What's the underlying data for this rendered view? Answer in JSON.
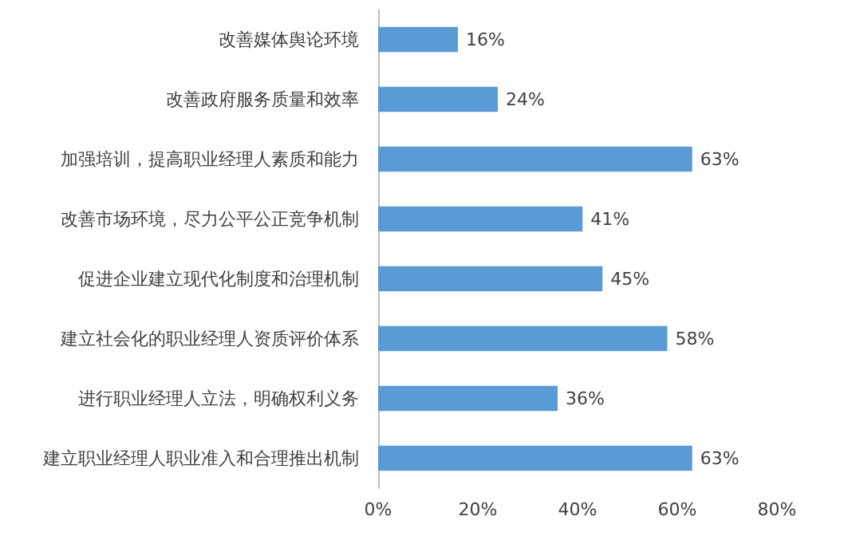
{
  "chart_data": {
    "type": "bar",
    "orientation": "horizontal",
    "categories": [
      "改善媒体舆论环境",
      "改善政府服务质量和效率",
      "加强培训，提高职业经理人素质和能力",
      "改善市场环境，尽力公平公正竞争机制",
      "促进企业建立现代化制度和治理机制",
      "建立社会化的职业经理人资质评价体系",
      "进行职业经理人立法，明确权利义务",
      "建立职业经理人职业准入和合理推出机制"
    ],
    "values": [
      16,
      24,
      63,
      41,
      45,
      58,
      36,
      63
    ],
    "value_labels": [
      "16%",
      "24%",
      "63%",
      "41%",
      "45%",
      "58%",
      "36%",
      "63%"
    ],
    "color": "#5b9bd5",
    "xlim": [
      0,
      80
    ],
    "xticks": [
      {
        "value": 0,
        "label": "0%"
      },
      {
        "value": 20,
        "label": "20%"
      },
      {
        "value": 40,
        "label": "40%"
      },
      {
        "value": 60,
        "label": "60%"
      },
      {
        "value": 80,
        "label": "80%"
      }
    ],
    "grid": false
  }
}
